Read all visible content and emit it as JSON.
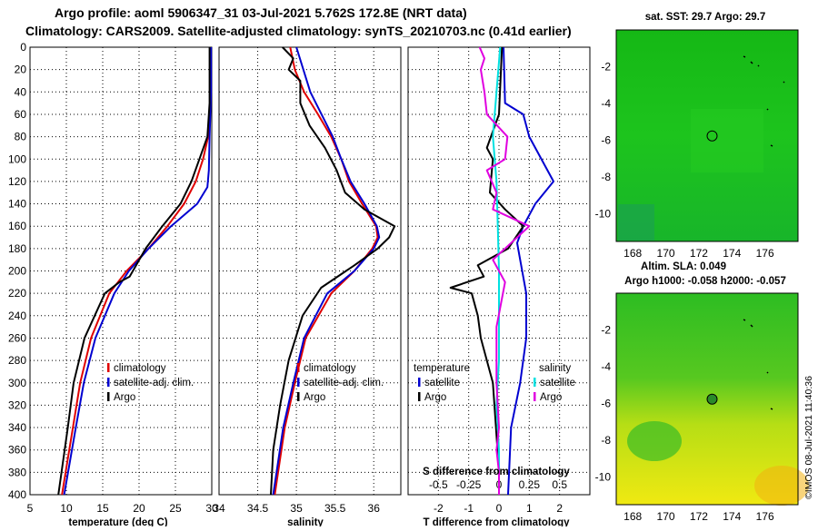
{
  "title_line1": "Argo profile: aoml 5906347_31 03-Jul-2021 5.762S 172.8E (NRT data)",
  "title_line2": "Climatology: CARS2009. Satellite-adjusted climatology: synTS_20210703.nc (0.41d earlier)",
  "timestamp": "©IMOS 08-Jul-2021 11:40:36",
  "colors": {
    "climatology": "#e00000",
    "satellite": "#0000d0",
    "argo": "#000000",
    "salinity": "#e000e0",
    "salinity_sat": "#00e0e0",
    "map_green": "#22c51e",
    "map_yellow": "#e8ee10"
  },
  "chart_data": [
    {
      "type": "line",
      "id": "temperature",
      "xlabel": "temperature (deg C)",
      "ylabel": "",
      "xlim": [
        5,
        30
      ],
      "ylim": [
        400,
        0
      ],
      "xticks": [
        "5",
        "10",
        "15",
        "20",
        "25",
        "30"
      ],
      "yticks": [
        "0",
        "20",
        "40",
        "60",
        "80",
        "100",
        "120",
        "140",
        "160",
        "180",
        "200",
        "220",
        "240",
        "260",
        "280",
        "300",
        "320",
        "340",
        "360",
        "380",
        "400"
      ],
      "legend": [
        "climatology",
        "satellite-adj. clim.",
        "Argo"
      ],
      "series": [
        {
          "name": "climatology",
          "depth": [
            0,
            40,
            60,
            80,
            100,
            120,
            140,
            160,
            180,
            200,
            220,
            260,
            300,
            340,
            400
          ],
          "values": [
            29.8,
            29.8,
            29.7,
            29.5,
            28.8,
            27.8,
            26.2,
            23.9,
            21.3,
            18.3,
            15.9,
            13.4,
            11.9,
            10.9,
            9.4
          ]
        },
        {
          "name": "satellite-adj. clim.",
          "depth": [
            0,
            40,
            80,
            110,
            125,
            140,
            160,
            180,
            200,
            220,
            260,
            300,
            340,
            400
          ],
          "values": [
            29.9,
            29.9,
            29.7,
            29.6,
            29.4,
            28.0,
            24.4,
            21.3,
            18.6,
            16.6,
            14.0,
            12.4,
            11.3,
            9.7
          ]
        },
        {
          "name": "Argo",
          "depth": [
            0,
            50,
            80,
            120,
            140,
            160,
            180,
            195,
            205,
            210,
            220,
            260,
            300,
            340,
            400
          ],
          "values": [
            29.7,
            29.7,
            29.4,
            27.2,
            25.7,
            23.2,
            20.9,
            19.6,
            18.7,
            17.3,
            15.3,
            12.5,
            11.0,
            10.2,
            8.9
          ]
        }
      ]
    },
    {
      "type": "line",
      "id": "salinity",
      "xlabel": "salinity",
      "ylabel": "",
      "xlim": [
        34,
        36.35
      ],
      "ylim": [
        400,
        0
      ],
      "xticks": [
        "34",
        "34.5",
        "35",
        "35.5",
        "36"
      ],
      "legend": [
        "climatology",
        "satellite-adj. clim.",
        "Argo"
      ],
      "series": [
        {
          "name": "climatology",
          "depth": [
            0,
            20,
            40,
            60,
            80,
            100,
            120,
            140,
            160,
            170,
            180,
            200,
            220,
            260,
            300,
            340,
            400
          ],
          "values": [
            34.92,
            34.98,
            35.1,
            35.28,
            35.45,
            35.58,
            35.68,
            35.85,
            36.03,
            36.05,
            35.98,
            35.75,
            35.45,
            35.12,
            34.98,
            34.85,
            34.72
          ]
        },
        {
          "name": "satellite-adj. clim.",
          "depth": [
            0,
            40,
            80,
            100,
            120,
            140,
            160,
            170,
            180,
            200,
            220,
            260,
            300,
            340,
            400
          ],
          "values": [
            35.0,
            35.18,
            35.47,
            35.58,
            35.7,
            35.88,
            36.04,
            36.07,
            36.0,
            35.75,
            35.4,
            35.1,
            34.96,
            34.83,
            34.7
          ]
        },
        {
          "name": "Argo",
          "depth": [
            0,
            10,
            20,
            30,
            50,
            70,
            90,
            110,
            130,
            145,
            160,
            170,
            180,
            195,
            215,
            240,
            280,
            320,
            360,
            400
          ],
          "values": [
            34.82,
            34.96,
            34.9,
            35.05,
            35.05,
            35.17,
            35.37,
            35.52,
            35.63,
            35.88,
            36.27,
            36.2,
            36.05,
            35.75,
            35.32,
            35.08,
            34.9,
            34.79,
            34.7,
            34.67
          ]
        }
      ]
    },
    {
      "type": "line",
      "id": "differences",
      "xlabel": "T difference from climatology",
      "x2label": "S difference from climatology",
      "xlim": [
        -3,
        3
      ],
      "ylim": [
        400,
        0
      ],
      "xticks": [
        "-2",
        "-1",
        "0",
        "1",
        "2"
      ],
      "x2ticks": [
        "-0.5",
        "-0.25",
        "0",
        "0.25",
        "0.5"
      ],
      "legend_groups": [
        {
          "heading": "temperature",
          "items": [
            "satellite",
            "Argo"
          ]
        },
        {
          "heading": "salinity",
          "items": [
            "satellite",
            "Argo"
          ]
        }
      ],
      "series": [
        {
          "name": "T satellite",
          "depth": [
            0,
            50,
            60,
            80,
            120,
            140,
            160,
            175,
            190,
            220,
            260,
            300,
            340,
            400
          ],
          "values": [
            0.15,
            0.2,
            0.8,
            1.0,
            1.8,
            1.2,
            0.8,
            0.6,
            0.7,
            0.9,
            0.9,
            0.7,
            0.4,
            0.3
          ]
        },
        {
          "name": "T Argo",
          "depth": [
            0,
            60,
            90,
            100,
            130,
            145,
            160,
            180,
            195,
            205,
            215,
            220,
            240,
            260,
            300,
            340,
            380,
            400
          ],
          "values": [
            0.1,
            0.0,
            -0.4,
            -0.2,
            -0.3,
            0.2,
            0.8,
            0.3,
            -0.7,
            -0.5,
            -1.6,
            -0.9,
            -0.7,
            -0.6,
            -0.2,
            -0.1,
            0.0,
            0.0
          ]
        },
        {
          "name": "S satellite",
          "depth": [
            0,
            40,
            80,
            120,
            160,
            200,
            240,
            280,
            320,
            360,
            400
          ],
          "values": [
            0.01,
            -0.02,
            -0.05,
            -0.02,
            -0.01,
            0.0,
            0.0,
            0.0,
            -0.02,
            0.0,
            0.0
          ]
        },
        {
          "name": "S Argo",
          "depth": [
            0,
            10,
            20,
            40,
            60,
            80,
            100,
            110,
            130,
            145,
            160,
            175,
            190,
            210,
            250,
            300,
            340,
            360,
            380,
            400
          ],
          "values": [
            -0.16,
            -0.12,
            -0.15,
            -0.12,
            -0.1,
            0.07,
            0.05,
            -0.1,
            -0.02,
            -0.05,
            0.25,
            0.1,
            -0.05,
            0.05,
            -0.02,
            -0.02,
            0.0,
            -0.02,
            0.0,
            0.0
          ]
        }
      ]
    },
    {
      "type": "heatmap",
      "id": "sst_map",
      "title": "sat. SST: 29.7 Argo: 29.7",
      "xticks": [
        "168",
        "170",
        "172",
        "174",
        "176"
      ],
      "yticks": [
        "-2",
        "-4",
        "-6",
        "-8",
        "-10"
      ],
      "xlim": [
        167,
        178
      ],
      "ylim": [
        -11.5,
        0
      ],
      "marker": {
        "lon": 172.8,
        "lat": -5.762
      }
    },
    {
      "type": "heatmap",
      "id": "sla_map",
      "title": "Altim. SLA: 0.049",
      "subtitle": "Argo h1000: -0.058 h2000: -0.057",
      "xticks": [
        "168",
        "170",
        "172",
        "174",
        "176"
      ],
      "yticks": [
        "-2",
        "-4",
        "-6",
        "-8",
        "-10"
      ],
      "xlim": [
        167,
        178
      ],
      "ylim": [
        -11.5,
        0
      ],
      "marker": {
        "lon": 172.8,
        "lat": -5.762
      }
    }
  ]
}
